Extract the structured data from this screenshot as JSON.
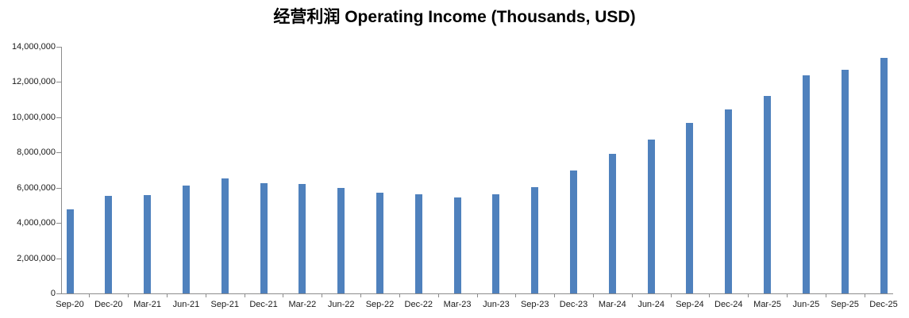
{
  "chart_data": {
    "type": "bar",
    "title": "经营利润 Operating Income (Thousands, USD)",
    "categories": [
      "Sep-20",
      "Dec-20",
      "Mar-21",
      "Jun-21",
      "Sep-21",
      "Dec-21",
      "Mar-22",
      "Jun-22",
      "Sep-22",
      "Dec-22",
      "Mar-23",
      "Jun-23",
      "Sep-23",
      "Dec-23",
      "Mar-24",
      "Jun-24",
      "Sep-24",
      "Dec-24",
      "Mar-25",
      "Jun-25",
      "Sep-25",
      "Dec-25"
    ],
    "values": [
      4750000,
      5540000,
      5590000,
      6110000,
      6530000,
      6240000,
      6210000,
      5970000,
      5700000,
      5630000,
      5430000,
      5630000,
      6030000,
      6980000,
      7920000,
      8730000,
      9680000,
      10450000,
      11190000,
      12360000,
      12690000,
      13380000
    ],
    "xlabel": "",
    "ylabel": "",
    "ylim": [
      0,
      14000000
    ],
    "y_tick_interval": 2000000,
    "y_ticks": [
      {
        "value": 0,
        "label": "0"
      },
      {
        "value": 2000000,
        "label": "2,000,000"
      },
      {
        "value": 4000000,
        "label": "4,000,000"
      },
      {
        "value": 6000000,
        "label": "6,000,000"
      },
      {
        "value": 8000000,
        "label": "8,000,000"
      },
      {
        "value": 10000000,
        "label": "10,000,000"
      },
      {
        "value": 12000000,
        "label": "12,000,000"
      },
      {
        "value": 14000000,
        "label": "14,000,000"
      }
    ],
    "grid": false,
    "legend": false,
    "bar_color": "#4F81BD",
    "axis_color": "#8C8C8C",
    "label_color": "#1A1A1A"
  }
}
